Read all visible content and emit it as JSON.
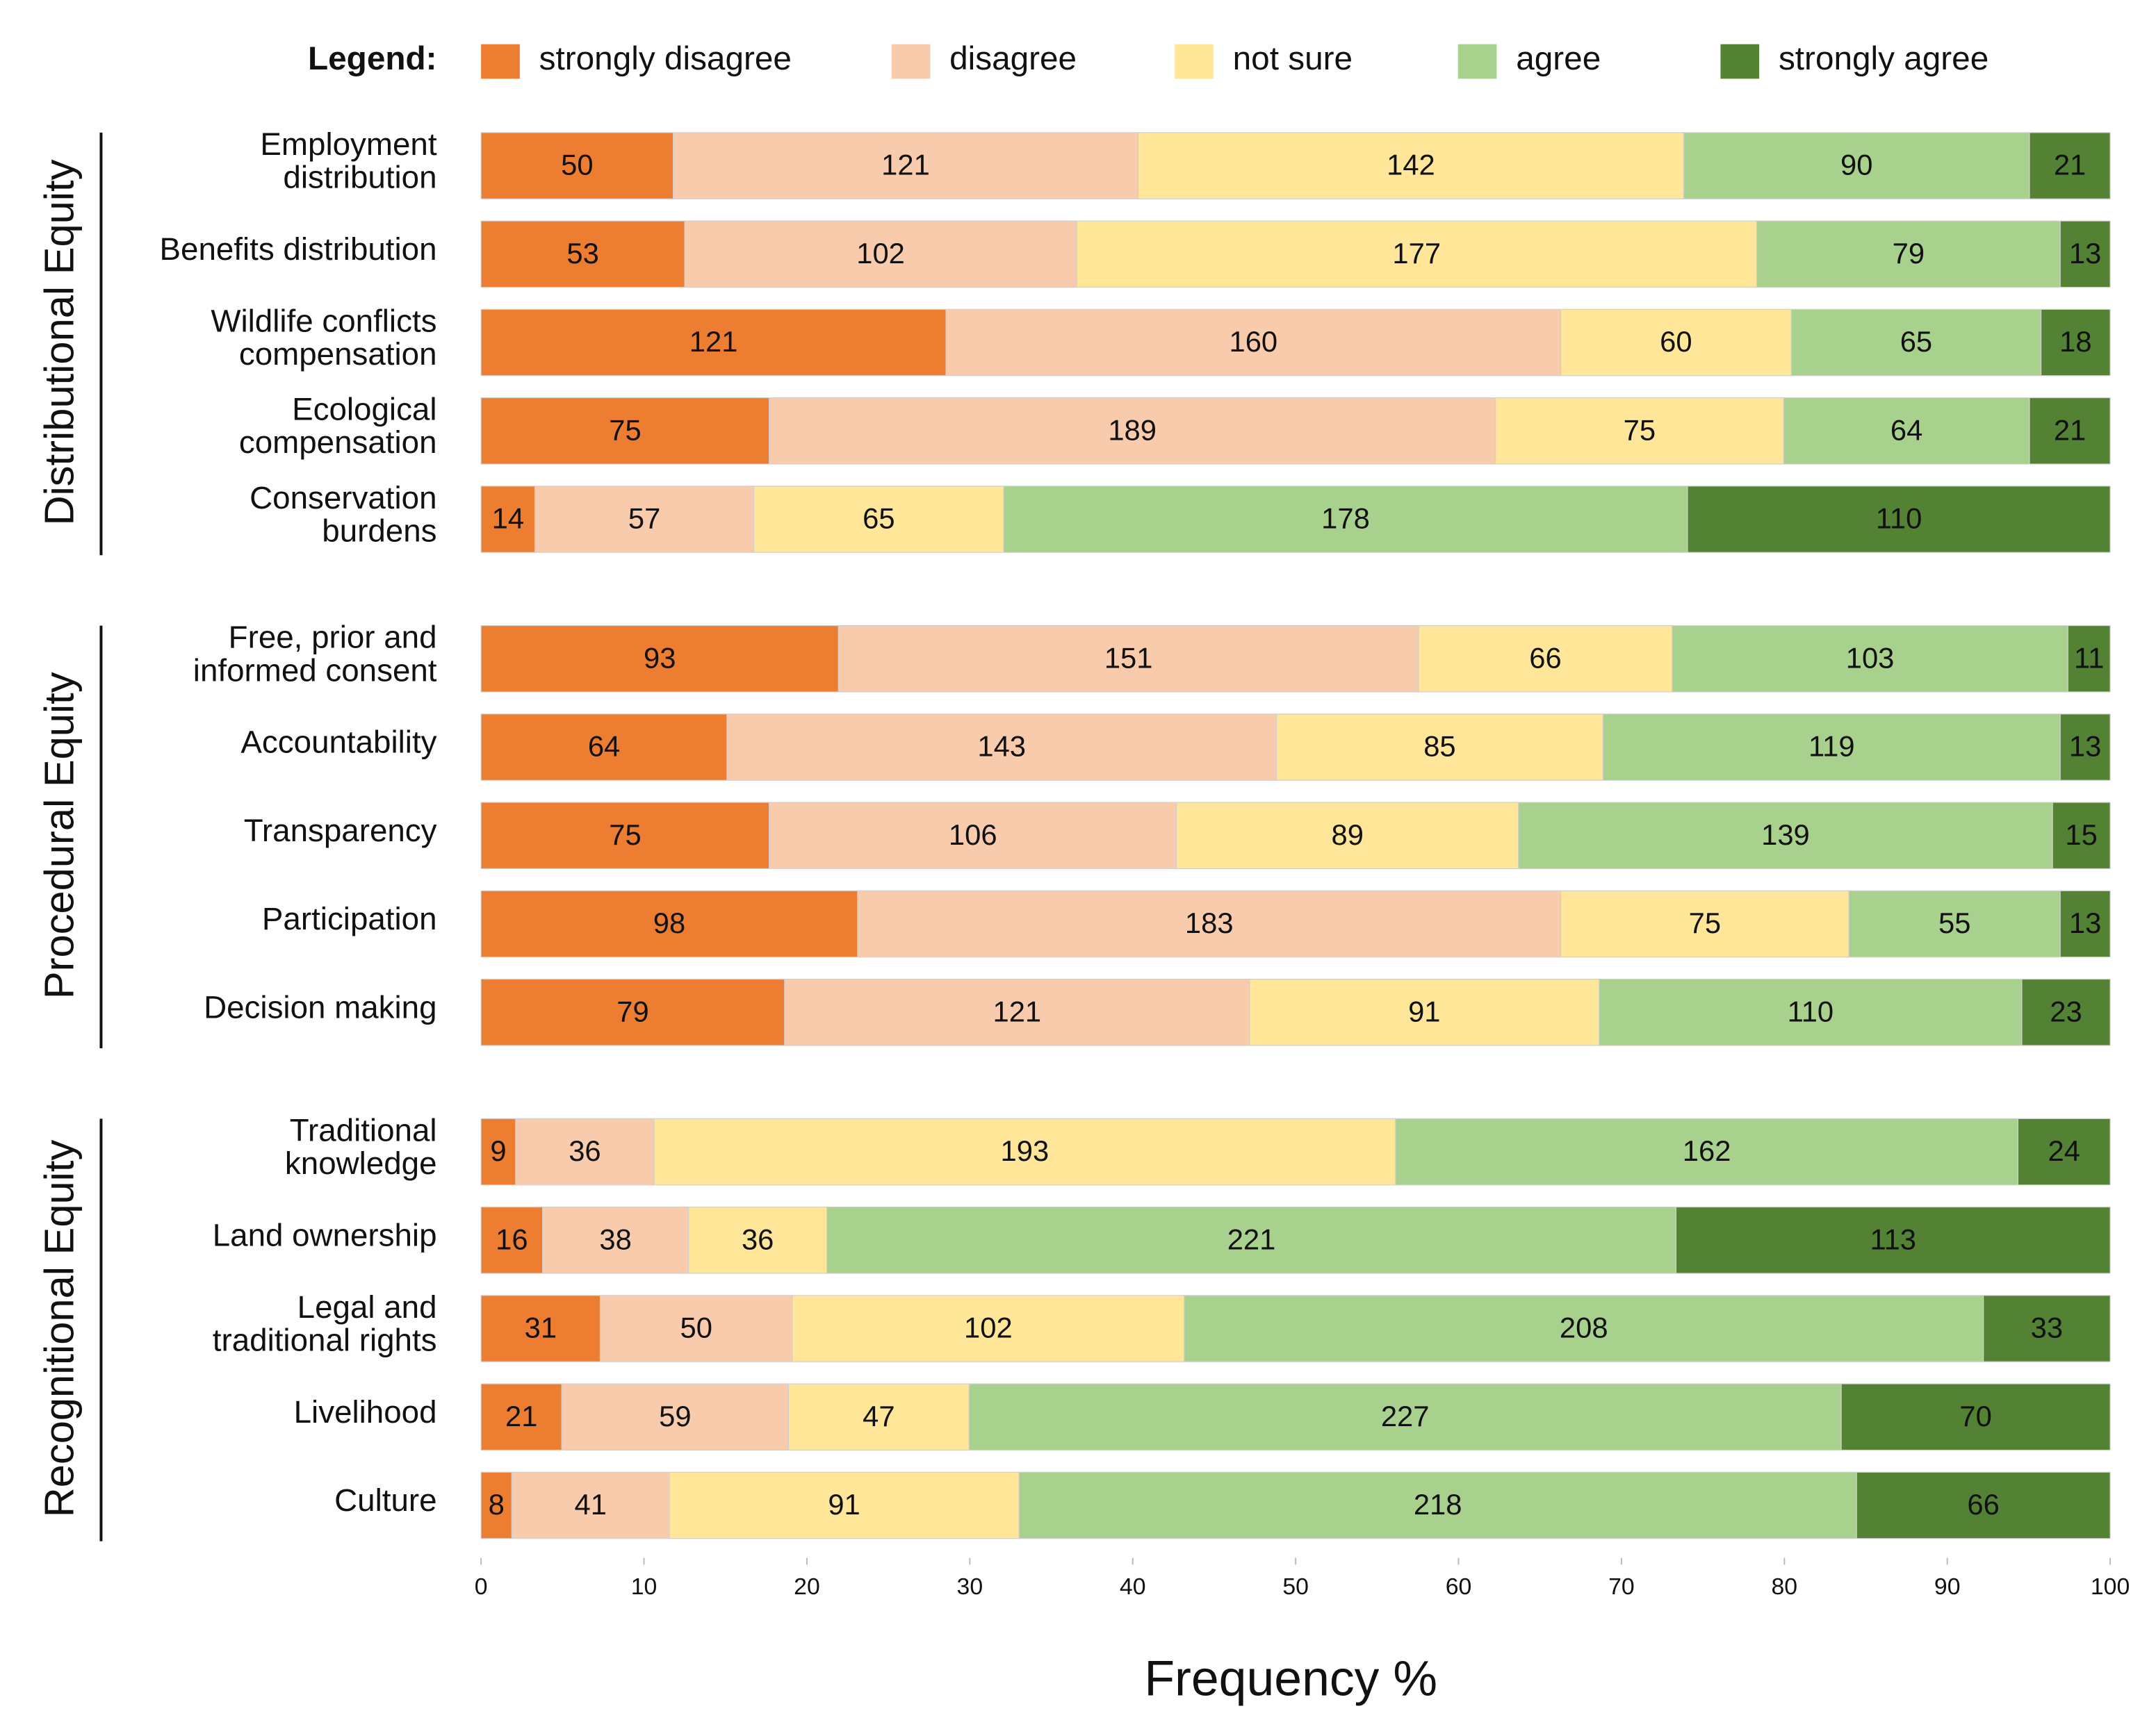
{
  "chart_data": {
    "type": "bar",
    "orientation": "horizontal",
    "stacked": "percent",
    "legend_title": "Legend:",
    "legend": "top",
    "xlabel": "Frequency %",
    "xlim": [
      0,
      100
    ],
    "xticks": [
      0,
      10,
      20,
      30,
      40,
      50,
      60,
      70,
      80,
      90,
      100
    ],
    "grid": false,
    "groups": [
      {
        "name": "Distributional Equity",
        "categories": [
          [
            "Employment",
            "distribution"
          ],
          [
            "Benefits distribution"
          ],
          [
            "Wildlife conflicts",
            "compensation"
          ],
          [
            "Ecological",
            "compensation"
          ],
          [
            "Conservation",
            "burdens"
          ]
        ]
      },
      {
        "name": "Procedural Equity",
        "categories": [
          [
            "Free, prior and",
            "informed consent"
          ],
          [
            "Accountability"
          ],
          [
            "Transparency"
          ],
          [
            "Participation"
          ],
          [
            "Decision making"
          ]
        ]
      },
      {
        "name": "Recognitional Equity",
        "categories": [
          [
            "Traditional",
            "knowledge"
          ],
          [
            "Land ownership"
          ],
          [
            "Legal and",
            "traditional rights"
          ],
          [
            "Livelihood"
          ],
          [
            "Culture"
          ]
        ]
      }
    ],
    "series": [
      {
        "name": "strongly disagree",
        "color": "#ed7d31",
        "values": [
          50,
          53,
          121,
          75,
          14,
          93,
          64,
          75,
          98,
          79,
          9,
          16,
          31,
          21,
          8
        ]
      },
      {
        "name": "disagree",
        "color": "#f8cbad",
        "values": [
          121,
          102,
          160,
          189,
          57,
          151,
          143,
          106,
          183,
          121,
          36,
          38,
          50,
          59,
          41
        ]
      },
      {
        "name": "not sure",
        "color": "#ffe699",
        "values": [
          142,
          177,
          60,
          75,
          65,
          66,
          85,
          89,
          75,
          91,
          193,
          36,
          102,
          47,
          91
        ]
      },
      {
        "name": "agree",
        "color": "#a9d18e",
        "values": [
          90,
          79,
          65,
          64,
          178,
          103,
          119,
          139,
          55,
          110,
          162,
          221,
          208,
          227,
          218
        ]
      },
      {
        "name": "strongly agree",
        "color": "#548235",
        "values": [
          21,
          13,
          18,
          21,
          110,
          11,
          13,
          15,
          13,
          23,
          24,
          113,
          33,
          70,
          66
        ]
      }
    ]
  }
}
